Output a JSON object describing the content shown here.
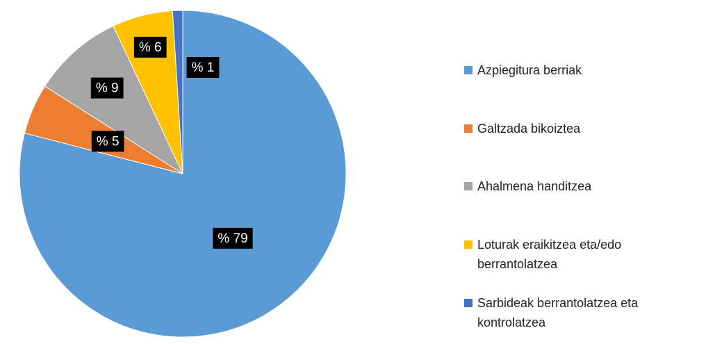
{
  "chart_data": {
    "type": "pie",
    "categories": [
      "Azpiegitura berriak",
      "Galtzada bikoiztea",
      "Ahalmena handitzea",
      "Loturak eraikitzea eta/edo berrantolatzea",
      "Sarbideak berrantolatzea eta kontrolatzea"
    ],
    "values": [
      79,
      5,
      9,
      6,
      1
    ],
    "value_labels": [
      "% 79",
      "% 5",
      "% 9",
      "% 6",
      "% 1"
    ],
    "colors": [
      "#5b9bd5",
      "#ed7d31",
      "#a5a5a5",
      "#ffc000",
      "#4472c4"
    ],
    "legend": "right"
  }
}
